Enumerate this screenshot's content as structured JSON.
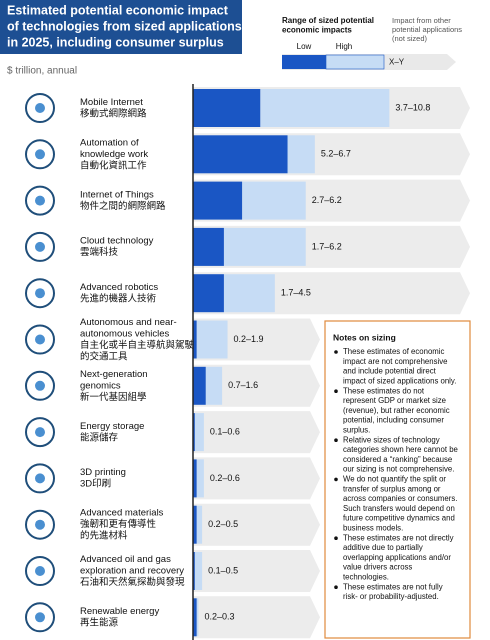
{
  "chart_data": {
    "type": "range_bar",
    "title": [
      "Estimated potential economic impact",
      "of technologies from sized applications",
      "in 2025, including consumer surplus"
    ],
    "subtitle": "$ trillion, annual",
    "legend_title": [
      "Range of sized potential",
      "economic impacts"
    ],
    "legend_range_label": "X–Y",
    "legend_other": [
      "Impact from other",
      "potential applications",
      "(not sized)"
    ],
    "categories": [
      [
        "Mobile Internet"
      ],
      [
        "Automation of",
        "knowledge work"
      ],
      [
        "Internet of Things"
      ],
      [
        "Cloud technology"
      ],
      [
        "Advanced robotics"
      ],
      [
        "Autonomous and near-",
        "autonomous vehicles"
      ],
      [
        "Next-generation",
        "genomics"
      ],
      [
        "Energy storage"
      ],
      [
        "3D printing"
      ],
      [
        "Advanced materials"
      ],
      [
        "Advanced oil and gas",
        "exploration and recovery"
      ],
      [
        "Renewable energy"
      ]
    ],
    "categories_zh": [
      [
        "移動式網際網路"
      ],
      [
        "自動化資訊工作"
      ],
      [
        "物件之間的網際網路"
      ],
      [
        "雲端科技"
      ],
      [
        "先進的機器人技術"
      ],
      [
        "自主化或半自主導航與駕駛",
        "的交通工具"
      ],
      [
        "新一代基因組學"
      ],
      [
        "能源儲存"
      ],
      [
        "3D印刷"
      ],
      [
        "強韌和更有傳導性",
        "的先進材料"
      ],
      [
        "石油和天然氣探勘與發現"
      ],
      [
        "再生能源"
      ]
    ],
    "series": [
      {
        "name": "Low",
        "color": "#1a56c4",
        "values": [
          3.7,
          5.2,
          2.7,
          1.7,
          1.7,
          0.2,
          0.7,
          0.1,
          0.2,
          0.2,
          0.1,
          0.2
        ]
      },
      {
        "name": "High",
        "color": "#c6dcf5",
        "values": [
          10.8,
          6.7,
          6.2,
          6.2,
          4.5,
          1.9,
          1.6,
          0.6,
          0.6,
          0.5,
          0.5,
          0.3
        ]
      }
    ],
    "range_labels": [
      "3.7–10.8",
      "5.2–6.7",
      "2.7–6.2",
      "1.7–6.2",
      "1.7–4.5",
      "0.2–1.9",
      "0.7–1.6",
      "0.1–0.6",
      "0.2–0.6",
      "0.2–0.5",
      "0.1–0.5",
      "0.2–0.3"
    ],
    "xlim": [
      0,
      11
    ]
  },
  "notes": {
    "title": "Notes on sizing",
    "items": [
      [
        "These estimates of economic",
        "impact are not comprehensive",
        "and include potential direct",
        "impact of sized applications only."
      ],
      [
        "These estimates do not",
        "represent GDP or market size",
        "(revenue), but rather economic",
        "potential, including consumer",
        "surplus."
      ],
      [
        "Relative sizes of technology",
        "categories shown here cannot be",
        "considered a “ranking” because",
        "our sizing is not comprehensive."
      ],
      [
        "We do not quantify the split or",
        "transfer of surplus among or",
        "across companies or consumers.",
        "Such transfers would depend on",
        "future competitive dynamics and",
        "business models."
      ],
      [
        "These estimates are not directly",
        "additive due to partially",
        "overlapping applications and/or",
        "value drivers across",
        "technologies."
      ],
      [
        "These estimates are not fully",
        "risk- or probability-adjusted."
      ]
    ]
  }
}
